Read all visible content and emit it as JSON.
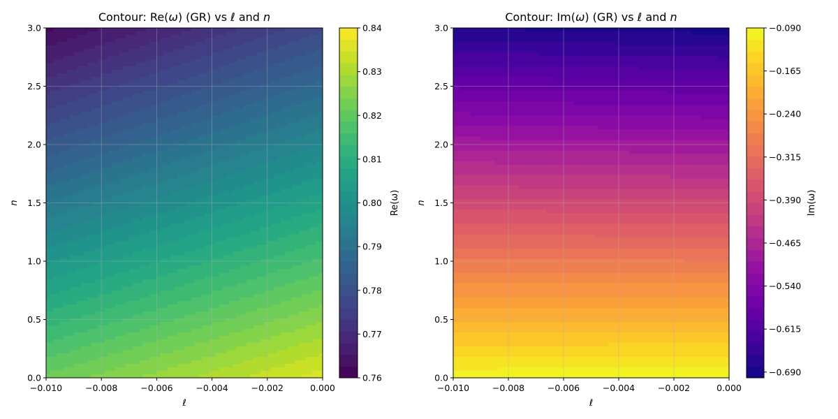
{
  "chart_data": [
    {
      "type": "heatmap",
      "subtype": "filled-contour",
      "title": "Contour: Re(ω) (GR) vs ℓ and n",
      "title_parts": [
        {
          "t": "Contour: Re("
        },
        {
          "t": "ω",
          "i": true
        },
        {
          "t": ") (GR) vs "
        },
        {
          "t": "ℓ",
          "i": true
        },
        {
          "t": " and "
        },
        {
          "t": "n",
          "i": true
        }
      ],
      "xlabel": "ℓ",
      "ylabel": "n",
      "xlim": [
        -0.01,
        0.0
      ],
      "ylim": [
        0.0,
        3.0
      ],
      "xticks": [
        "−0.010",
        "−0.008",
        "−0.006",
        "−0.004",
        "−0.002",
        "0.000"
      ],
      "yticks": [
        "0.0",
        "0.5",
        "1.0",
        "1.5",
        "2.0",
        "2.5",
        "3.0"
      ],
      "grid": true,
      "colormap": "viridis",
      "levels": 30,
      "colorbar": {
        "label": "Re(ω)",
        "range": [
          0.76,
          0.84
        ],
        "ticks": [
          "0.76",
          "0.77",
          "0.78",
          "0.79",
          "0.80",
          "0.81",
          "0.82",
          "0.83",
          "0.84"
        ]
      },
      "corner_values": {
        "l_min_n_min": 0.822,
        "l_max_n_min": 0.836,
        "l_min_n_max": 0.762,
        "l_max_n_max": 0.778
      }
    },
    {
      "type": "heatmap",
      "subtype": "filled-contour",
      "title": "Contour: Im(ω) (GR) vs ℓ and n",
      "title_parts": [
        {
          "t": "Contour: Im("
        },
        {
          "t": "ω",
          "i": true
        },
        {
          "t": ") (GR) vs "
        },
        {
          "t": "ℓ",
          "i": true
        },
        {
          "t": " and "
        },
        {
          "t": "n",
          "i": true
        }
      ],
      "xlabel": "ℓ",
      "ylabel": "n",
      "xlim": [
        -0.01,
        0.0
      ],
      "ylim": [
        0.0,
        3.0
      ],
      "xticks": [
        "−0.010",
        "−0.008",
        "−0.006",
        "−0.004",
        "−0.002",
        "0.000"
      ],
      "yticks": [
        "0.0",
        "0.5",
        "1.0",
        "1.5",
        "2.0",
        "2.5",
        "3.0"
      ],
      "grid": true,
      "colormap": "plasma",
      "levels": 30,
      "colorbar": {
        "label": "Im(ω)",
        "range": [
          -0.7,
          -0.09
        ],
        "ticks": [
          "−0.090",
          "−0.165",
          "−0.240",
          "−0.315",
          "−0.390",
          "−0.465",
          "−0.540",
          "−0.615",
          "−0.690"
        ]
      },
      "corner_values": {
        "l_min_n_min": -0.096,
        "l_max_n_min": -0.094,
        "l_min_n_max": -0.68,
        "l_max_n_max": -0.69
      }
    }
  ]
}
